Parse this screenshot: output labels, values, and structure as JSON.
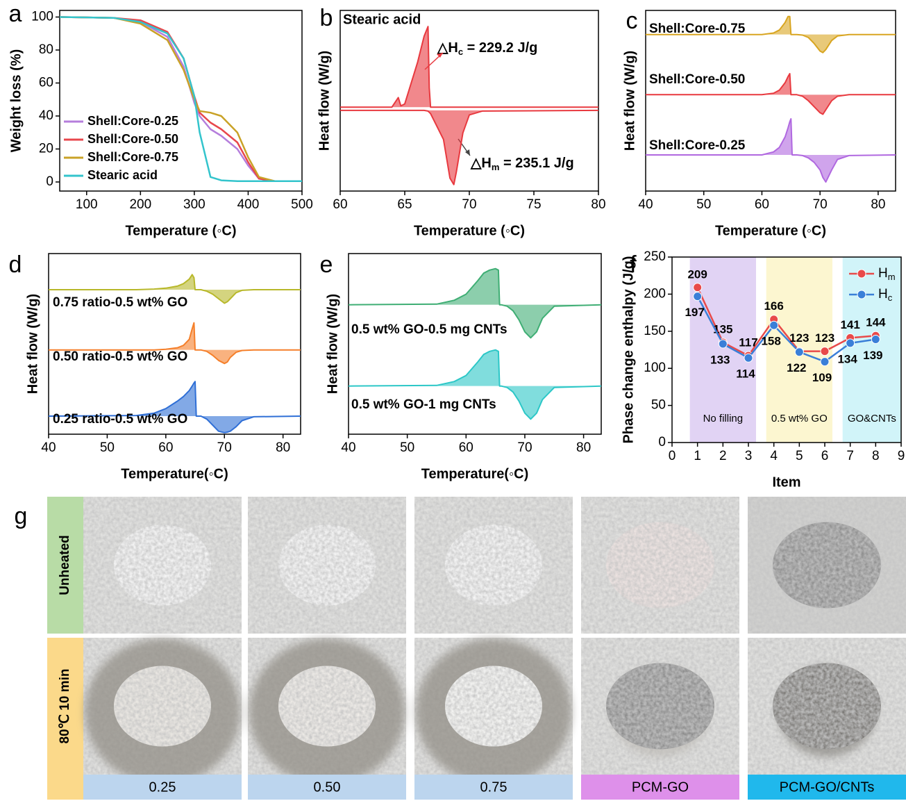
{
  "chart_data": [
    {
      "type": "line",
      "label": "a",
      "xlabel": "Temperature (◦C)",
      "ylabel": "Weight loss (%)",
      "x": [
        50,
        150,
        200,
        250,
        280,
        300,
        310,
        330,
        350,
        380,
        400,
        420,
        450,
        500
      ],
      "xlim": [
        50,
        500
      ],
      "xticks": [
        100,
        200,
        300,
        400,
        500
      ],
      "ylim": [
        -5.5,
        104
      ],
      "yticks": [
        0,
        20,
        40,
        60,
        80,
        100
      ],
      "legend": "lower left",
      "series": [
        {
          "name": "Shell:Core-0.25",
          "color": "#b57edc",
          "values": [
            100,
            99.5,
            97,
            88,
            70,
            48,
            40,
            32,
            28,
            20,
            10,
            2,
            0.5,
            0.5
          ]
        },
        {
          "name": "Shell:Core-0.50",
          "color": "#e8474c",
          "values": [
            100,
            99.5,
            98,
            91,
            75,
            52,
            42,
            36,
            32,
            24,
            12,
            2,
            0.5,
            0.5
          ]
        },
        {
          "name": "Shell:Core-0.75",
          "color": "#c9a227",
          "values": [
            100,
            99.5,
            96,
            86,
            68,
            50,
            43,
            42,
            40,
            30,
            15,
            3,
            0.5,
            0.5
          ]
        },
        {
          "name": "Stearic acid",
          "color": "#33c4cc",
          "values": [
            100,
            99.5,
            97,
            90,
            75,
            52,
            30,
            3,
            1,
            0.5,
            0.5,
            0.5,
            0.5,
            0.5
          ]
        }
      ]
    },
    {
      "type": "area",
      "label": "b",
      "title": "Stearic acid",
      "xlabel": "Temperature (◦C)",
      "ylabel": "Heat flow (W/g)",
      "x": [
        60,
        64,
        64.5,
        64.7,
        65,
        66,
        66.5,
        66.8,
        66.9,
        67,
        68,
        68.5,
        68.8,
        69,
        69.5,
        70,
        71,
        80
      ],
      "xlim": [
        60,
        80
      ],
      "xticks": [
        60,
        65,
        70,
        75,
        80
      ],
      "ylim": [
        -1.3,
        1.5
      ],
      "annotations": [
        {
          "parts": [
            "△H",
            "c",
            " = 229.2 J/g"
          ]
        },
        {
          "parts": [
            "△H",
            "m",
            " = 235.1 J/g"
          ]
        }
      ],
      "series": [
        {
          "color": "#e8393f",
          "values": [
            0,
            0,
            0.15,
            0.02,
            0.05,
            0.7,
            1.1,
            1.25,
            0.3,
            0,
            0,
            0,
            0,
            0,
            0,
            0,
            0,
            0
          ]
        },
        {
          "color": "#e8393f",
          "values": [
            -0.05,
            -0.05,
            -0.05,
            -0.05,
            -0.05,
            -0.05,
            -0.05,
            -0.06,
            -0.08,
            -0.1,
            -0.5,
            -1.1,
            -1.2,
            -1.0,
            -0.4,
            -0.12,
            -0.06,
            -0.05
          ]
        }
      ]
    },
    {
      "type": "area",
      "label": "c",
      "xlabel": "Temperature (◦C)",
      "ylabel": "Heat flow (W/g)",
      "x": [
        40,
        60,
        62,
        63,
        64,
        64.5,
        64.8,
        65,
        65.2,
        66,
        67,
        68,
        69,
        70,
        70.5,
        71,
        72,
        73,
        75,
        83
      ],
      "xlim": [
        40,
        83
      ],
      "xticks": [
        40,
        50,
        60,
        70,
        80
      ],
      "ylim": [
        -0.2,
        5.8
      ],
      "legend": "inline",
      "series": [
        {
          "name": "Shell:Core-0.75",
          "color": "#d8a520",
          "values": [
            5,
            5,
            5.05,
            5.15,
            5.4,
            5.6,
            5.6,
            5.0,
            5.0,
            5.0,
            4.98,
            4.9,
            4.7,
            4.45,
            4.4,
            4.5,
            4.8,
            4.95,
            5,
            5
          ]
        },
        {
          "name": "Shell:Core-0.50",
          "color": "#e8393f",
          "values": [
            3,
            3,
            3.05,
            3.15,
            3.4,
            3.6,
            3.7,
            3.0,
            3.0,
            3.0,
            2.95,
            2.8,
            2.6,
            2.4,
            2.35,
            2.5,
            2.8,
            2.95,
            3,
            3
          ]
        },
        {
          "name": "Shell:Core-0.25",
          "color": "#b068e0",
          "values": [
            1,
            1,
            1.1,
            1.25,
            1.6,
            1.9,
            2.1,
            2.2,
            1.0,
            1.0,
            0.98,
            0.9,
            0.75,
            0.5,
            0.25,
            0.1,
            0.5,
            0.85,
            0.98,
            1
          ]
        }
      ]
    },
    {
      "type": "area",
      "label": "d",
      "xlabel": "Temperature(◦C)",
      "ylabel": "Heat flow (W/g)",
      "x": [
        40,
        55,
        58,
        60,
        62,
        63,
        64,
        64.5,
        64.8,
        65,
        65.2,
        66,
        67,
        68,
        69,
        70,
        70.5,
        71,
        72,
        73,
        75,
        83
      ],
      "xlim": [
        40,
        83
      ],
      "xticks": [
        40,
        50,
        60,
        70,
        80
      ],
      "ylim": [
        0,
        6
      ],
      "legend": "inline",
      "series": [
        {
          "name": "0.75 ratio-0.5 wt% GO",
          "color": "#b8b82a",
          "values": [
            4.8,
            4.8,
            4.82,
            4.85,
            4.92,
            5.0,
            5.15,
            5.3,
            5.2,
            4.8,
            4.8,
            4.8,
            4.75,
            4.65,
            4.5,
            4.35,
            4.4,
            4.5,
            4.7,
            4.78,
            4.8,
            4.8
          ]
        },
        {
          "name": "0.50 ratio-0.5 wt% GO",
          "color": "#f57f2a",
          "values": [
            2.8,
            2.8,
            2.8,
            2.82,
            2.87,
            2.95,
            3.15,
            3.5,
            3.7,
            2.8,
            2.8,
            2.8,
            2.75,
            2.62,
            2.45,
            2.35,
            2.4,
            2.55,
            2.72,
            2.78,
            2.8,
            2.8
          ]
        },
        {
          "name": "0.25 ratio-0.5 wt% GO",
          "color": "#2f6fd6",
          "values": [
            0.6,
            0.62,
            0.7,
            0.85,
            1.1,
            1.25,
            1.45,
            1.6,
            1.7,
            1.75,
            0.6,
            0.6,
            0.5,
            0.3,
            0.1,
            0.05,
            0.07,
            0.1,
            0.25,
            0.45,
            0.58,
            0.6
          ]
        }
      ]
    },
    {
      "type": "area",
      "label": "e",
      "xlabel": "Temperature(◦C)",
      "ylabel": "Heat flow (W/g)",
      "x": [
        40,
        55,
        58,
        60,
        62,
        63,
        64,
        65,
        65.5,
        65.7,
        66,
        67,
        68,
        69,
        70,
        71,
        72,
        73,
        75,
        83
      ],
      "xlim": [
        40,
        83
      ],
      "xticks": [
        40,
        50,
        60,
        70,
        80
      ],
      "ylim": [
        0,
        6
      ],
      "legend": "inline",
      "series": [
        {
          "name": "0.5 wt% GO-0.5 mg CNTs",
          "color": "#3fae74",
          "values": [
            4.3,
            4.32,
            4.45,
            4.65,
            5.1,
            5.35,
            5.45,
            5.5,
            5.45,
            4.3,
            4.3,
            4.25,
            4.1,
            3.8,
            3.4,
            3.2,
            3.4,
            3.85,
            4.25,
            4.3
          ]
        },
        {
          "name": "0.5 wt% GO-1 mg CNTs",
          "color": "#2cc7c7",
          "values": [
            1.6,
            1.62,
            1.75,
            1.95,
            2.4,
            2.65,
            2.75,
            2.8,
            2.75,
            1.6,
            1.6,
            1.55,
            1.4,
            1.1,
            0.7,
            0.5,
            0.7,
            1.15,
            1.55,
            1.6
          ]
        }
      ]
    },
    {
      "type": "line",
      "label": "f",
      "xlabel": "Item",
      "ylabel": "Phase change enthalpy (J/g)",
      "markers": true,
      "x": [
        1,
        2,
        3,
        4,
        5,
        6,
        7,
        8
      ],
      "xlim": [
        0,
        9
      ],
      "xticks": [
        0,
        1,
        2,
        3,
        4,
        5,
        6,
        7,
        8,
        9
      ],
      "ylim": [
        0,
        250
      ],
      "yticks": [
        0,
        50,
        100,
        150,
        200,
        250
      ],
      "legend": "upper right",
      "regions": [
        {
          "label": "No filling",
          "start": 0.7,
          "end": 3.3,
          "color": "#dccbf2"
        },
        {
          "label": "0.5 wt% GO",
          "start": 3.7,
          "end": 6.3,
          "color": "#fcf5c8"
        },
        {
          "label": "GO&CNTs",
          "start": 6.7,
          "end": 9,
          "color": "#c9f2f8"
        }
      ],
      "series": [
        {
          "name": "H",
          "name_sub": "m",
          "color": "#e84a4a",
          "values": [
            209,
            135,
            117,
            166,
            123,
            123,
            141,
            144
          ]
        },
        {
          "name": "H",
          "name_sub": "c",
          "color": "#3a7fd8",
          "values": [
            197,
            133,
            114,
            158,
            122,
            109,
            134,
            139
          ]
        }
      ]
    }
  ],
  "photos": {
    "label": "g",
    "rows": [
      "Unheated",
      "80℃ 10 min"
    ],
    "columns": [
      "0.25",
      "0.50",
      "0.75",
      "PCM-GO",
      "PCM-GO/CNTs"
    ]
  }
}
